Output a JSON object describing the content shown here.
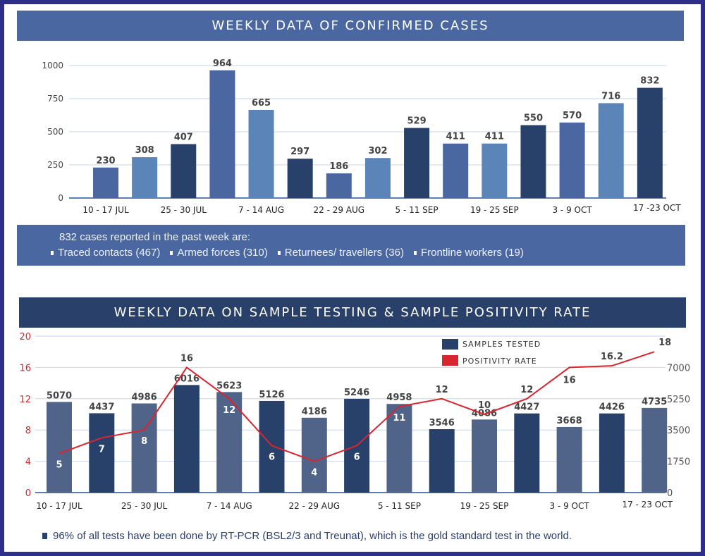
{
  "colors": {
    "frame": "#2e2f8a",
    "banner_top": "#4a67a1",
    "banner_bottom": "#29416a",
    "bar_mid": "#4a67a1",
    "bar_light": "#5b84b9",
    "bar_dark": "#28416b",
    "bar_slate": "#506489",
    "positivity_line": "#d9252f",
    "left_axis_red": "#d9252f"
  },
  "top_section": {
    "title": "WEEKLY DATA OF CONFIRMED CASES",
    "info_heading": "832 cases reported in the past week are:",
    "breakdown": [
      "Traced contacts (467)",
      "Armed forces (310)",
      "Returnees/ travellers (36)",
      "Frontline workers (19)"
    ]
  },
  "bottom_section": {
    "title": "WEEKLY DATA ON SAMPLE TESTING & SAMPLE POSITIVITY RATE",
    "footnote": "96% of all tests have been done by RT-PCR (BSL2/3 and Treunat), which is the gold standard test in the world."
  },
  "chart_data": [
    {
      "type": "bar",
      "title": "WEEKLY DATA OF CONFIRMED CASES",
      "xlabel": "",
      "ylabel": "",
      "ylim": [
        0,
        1000
      ],
      "yticks": [
        0,
        250,
        500,
        750,
        1000
      ],
      "grid": true,
      "categories": [
        "10 - 17 JUL",
        "",
        "25 - 30 JUL",
        "",
        "7 - 14 AUG",
        "",
        "22 - 29 AUG",
        "",
        "5 - 11 SEP",
        "",
        "19 - 25 SEP",
        "",
        "3 - 9 OCT",
        "",
        "17 -23 OCT"
      ],
      "values": [
        230,
        308,
        407,
        964,
        665,
        297,
        186,
        302,
        529,
        411,
        411,
        550,
        570,
        716,
        832
      ],
      "bar_color_cycle": [
        "mid",
        "light",
        "dark"
      ]
    },
    {
      "type": "bar+line",
      "title": "WEEKLY DATA ON SAMPLE TESTING & SAMPLE POSITIVITY RATE",
      "legend": [
        "SAMPLES TESTED",
        "POSITIVITY RATE"
      ],
      "legend_position": "top-right",
      "grid": true,
      "categories": [
        "10 - 17 JUL",
        "",
        "25 - 30 JUL",
        "",
        "7 - 14 AUG",
        "",
        "22 - 29 AUG",
        "",
        "5 - 11 SEP",
        "",
        "19 - 25 SEP",
        "",
        "3 - 9 OCT",
        "",
        "17 - 23 OCT"
      ],
      "series": [
        {
          "name": "SAMPLES TESTED",
          "axis": "right",
          "type": "bar",
          "values": [
            5070,
            4437,
            4986,
            6016,
            5623,
            5126,
            4186,
            5246,
            4958,
            3546,
            4086,
            4427,
            3668,
            4426,
            4735
          ]
        },
        {
          "name": "POSITIVITY RATE",
          "axis": "left",
          "type": "line",
          "values": [
            5,
            7,
            8,
            16,
            12,
            6,
            4,
            6,
            11,
            12,
            10,
            12,
            16,
            16.2,
            18
          ]
        }
      ],
      "left_axis": {
        "ylim": [
          0,
          20
        ],
        "ticks": [
          0,
          4,
          8,
          12,
          16,
          20
        ]
      },
      "right_axis": {
        "ylim": [
          0,
          8750
        ],
        "ticks": [
          0,
          1750,
          3500,
          5250,
          7000
        ]
      }
    }
  ]
}
